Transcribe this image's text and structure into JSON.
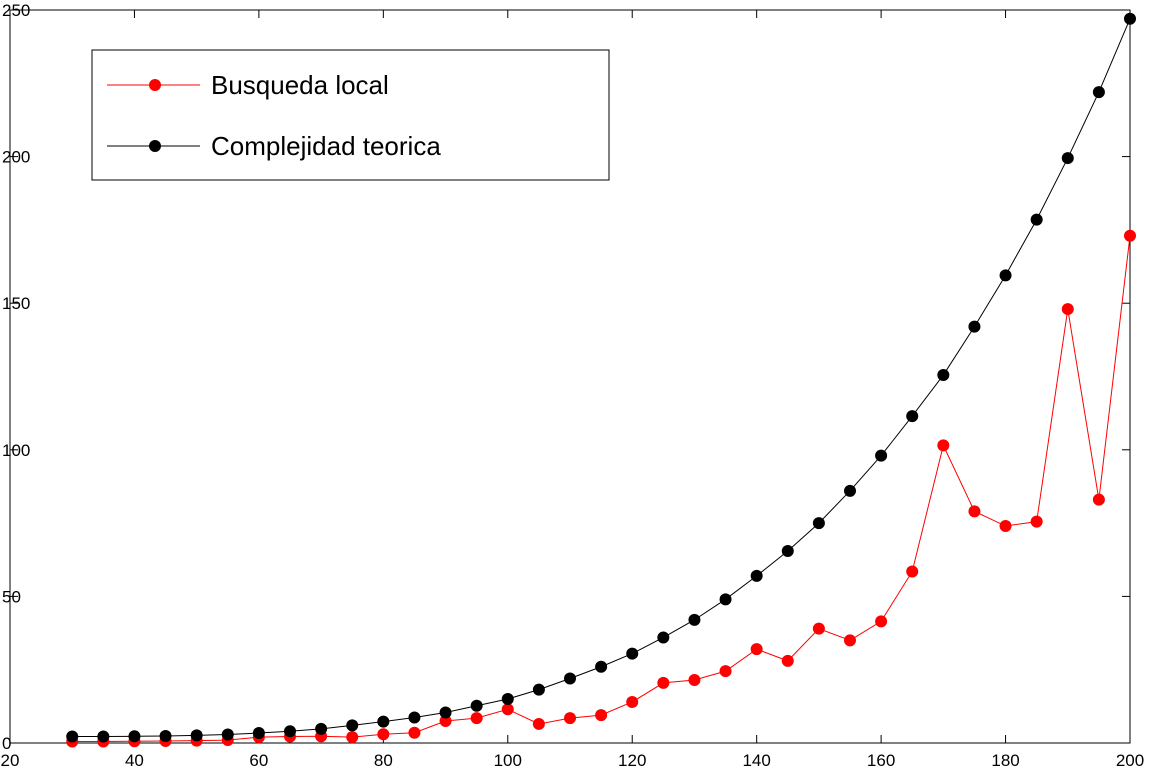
{
  "chart_data": {
    "type": "line",
    "title": "",
    "xlabel": "",
    "ylabel": "",
    "xlim": [
      20,
      200
    ],
    "ylim": [
      0,
      250
    ],
    "xticks": [
      20,
      40,
      60,
      80,
      100,
      120,
      140,
      160,
      180,
      200
    ],
    "yticks": [
      0,
      50,
      100,
      150,
      200,
      250
    ],
    "x": [
      30,
      35,
      40,
      45,
      50,
      55,
      60,
      65,
      70,
      75,
      80,
      85,
      90,
      95,
      100,
      105,
      110,
      115,
      120,
      125,
      130,
      135,
      140,
      145,
      150,
      155,
      160,
      165,
      170,
      175,
      180,
      185,
      190,
      195,
      200
    ],
    "series": [
      {
        "name": "Busqueda local",
        "color": "#ff0000",
        "values": [
          0.5,
          0.5,
          0.6,
          0.7,
          0.8,
          1.0,
          2.0,
          2.2,
          2.3,
          2.0,
          3.0,
          3.5,
          7.5,
          8.5,
          11.5,
          6.5,
          8.5,
          9.5,
          14.0,
          20.5,
          21.5,
          24.5,
          32.0,
          28.0,
          39.0,
          35.0,
          41.5,
          58.5,
          101.5,
          79.0,
          74.0,
          75.5,
          148.0,
          83.0,
          173.0
        ]
      },
      {
        "name": "Complejidad teorica",
        "color": "#000000",
        "values": [
          2.2,
          2.2,
          2.3,
          2.4,
          2.6,
          2.9,
          3.4,
          4.0,
          4.8,
          6.0,
          7.3,
          8.7,
          10.4,
          12.7,
          15.0,
          18.2,
          22.0,
          26.0,
          30.5,
          36.0,
          42.0,
          49.0,
          57.0,
          65.5,
          75.0,
          86.0,
          98.0,
          111.5,
          125.5,
          142.0,
          159.5,
          178.5,
          199.5,
          222.0,
          247.0
        ]
      }
    ],
    "grid": false,
    "legend_position": "top-left"
  }
}
